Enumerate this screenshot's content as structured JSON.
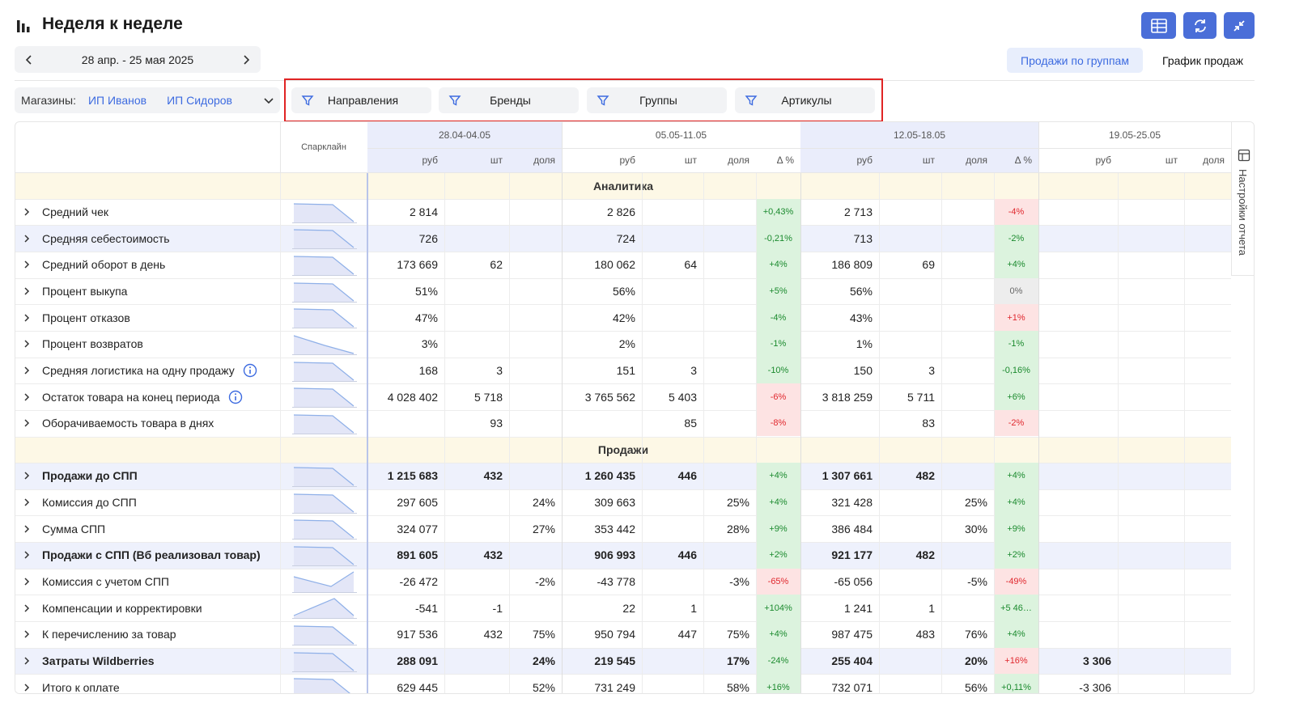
{
  "header": {
    "title": "Неделя к неделе",
    "date_range": "28 апр. - 25 мая 2025"
  },
  "tabs": [
    "Продажи по группам",
    "График продаж"
  ],
  "stores": {
    "label": "Магазины:",
    "items": [
      "ИП Иванов",
      "ИП Сидоров"
    ]
  },
  "filters": [
    "Направления",
    "Бренды",
    "Группы",
    "Артикулы"
  ],
  "side_panel": "Настройки отчета",
  "table": {
    "sparkline_header": "Спарклайн",
    "weeks": [
      {
        "label": "28.04-04.05",
        "columns": [
          "руб",
          "шт",
          "доля"
        ]
      },
      {
        "label": "05.05-11.05",
        "columns": [
          "руб",
          "шт",
          "доля",
          "Δ %"
        ]
      },
      {
        "label": "12.05-18.05",
        "columns": [
          "руб",
          "шт",
          "доля",
          "Δ %"
        ]
      },
      {
        "label": "19.05-25.05",
        "columns": [
          "руб",
          "шт",
          "доля"
        ]
      }
    ],
    "sections": [
      {
        "title": "Аналитика",
        "rows": [
          {
            "name": "Средний чек",
            "cells": [
              "2 814",
              null,
              null,
              "2 826",
              null,
              null,
              "+0,43%",
              "2 713",
              null,
              null,
              "-4%",
              null,
              null,
              null
            ],
            "delta_tones": [
              "green",
              "red"
            ]
          },
          {
            "name": "Средняя себестоимость",
            "highlight": true,
            "cells": [
              "726",
              null,
              null,
              "724",
              null,
              null,
              "-0,21%",
              "713",
              null,
              null,
              "-2%",
              null,
              null,
              null
            ],
            "delta_tones": [
              "green",
              "green"
            ]
          },
          {
            "name": "Средний оборот в день",
            "cells": [
              "173 669",
              "62",
              null,
              "180 062",
              "64",
              null,
              "+4%",
              "186 809",
              "69",
              null,
              "+4%",
              null,
              null,
              null
            ],
            "delta_tones": [
              "green",
              "green"
            ]
          },
          {
            "name": "Процент выкупа",
            "cells": [
              "51%",
              null,
              null,
              "56%",
              null,
              null,
              "+5%",
              "56%",
              null,
              null,
              "0%",
              null,
              null,
              null
            ],
            "delta_tones": [
              "green",
              "gray"
            ]
          },
          {
            "name": "Процент отказов",
            "cells": [
              "47%",
              null,
              null,
              "42%",
              null,
              null,
              "-4%",
              "43%",
              null,
              null,
              "+1%",
              null,
              null,
              null
            ],
            "delta_tones": [
              "green",
              "red"
            ]
          },
          {
            "name": "Процент возвратов",
            "cells": [
              "3%",
              null,
              null,
              "2%",
              null,
              null,
              "-1%",
              "1%",
              null,
              null,
              "-1%",
              null,
              null,
              null
            ],
            "delta_tones": [
              "green",
              "green"
            ]
          },
          {
            "name": "Средняя логистика на одну продажу",
            "info": true,
            "cells": [
              "168",
              "3",
              null,
              "151",
              "3",
              null,
              "-10%",
              "150",
              "3",
              null,
              "-0,16%",
              null,
              null,
              null
            ],
            "delta_tones": [
              "green",
              "green"
            ]
          },
          {
            "name": "Остаток товара на конец периода",
            "info": true,
            "cells": [
              "4 028 402",
              "5 718",
              null,
              "3 765 562",
              "5 403",
              null,
              "-6%",
              "3 818 259",
              "5 711",
              null,
              "+6%",
              null,
              null,
              null
            ],
            "delta_tones": [
              "red",
              "green"
            ]
          },
          {
            "name": "Оборачиваемость товара в днях",
            "cells": [
              null,
              "93",
              null,
              null,
              "85",
              null,
              "-8%",
              null,
              "83",
              null,
              "-2%",
              null,
              null,
              null
            ],
            "delta_tones": [
              "red",
              "red"
            ]
          }
        ]
      },
      {
        "title": "Продажи",
        "rows": [
          {
            "name": "Продажи до СПП",
            "bold": true,
            "cells": [
              "1 215 683",
              "432",
              null,
              "1 260 435",
              "446",
              null,
              "+4%",
              "1 307 661",
              "482",
              null,
              "+4%",
              null,
              null,
              null
            ],
            "delta_tones": [
              "green",
              "green"
            ]
          },
          {
            "name": "Комиссия до СПП",
            "cells": [
              "297 605",
              null,
              "24%",
              "309 663",
              null,
              "25%",
              "+4%",
              "321 428",
              null,
              "25%",
              "+4%",
              null,
              null,
              null
            ],
            "delta_tones": [
              "green",
              "green"
            ]
          },
          {
            "name": "Сумма СПП",
            "cells": [
              "324 077",
              null,
              "27%",
              "353 442",
              null,
              "28%",
              "+9%",
              "386 484",
              null,
              "30%",
              "+9%",
              null,
              null,
              null
            ],
            "delta_tones": [
              "green",
              "green"
            ]
          },
          {
            "name": "Продажи с СПП (Вб реализовал товар)",
            "bold": true,
            "cells": [
              "891 605",
              "432",
              null,
              "906 993",
              "446",
              null,
              "+2%",
              "921 177",
              "482",
              null,
              "+2%",
              null,
              null,
              null
            ],
            "delta_tones": [
              "green",
              "green"
            ]
          },
          {
            "name": "Комиссия с учетом СПП",
            "cells": [
              "-26 472",
              null,
              "-2%",
              "-43 778",
              null,
              "-3%",
              "-65%",
              "-65 056",
              null,
              "-5%",
              "-49%",
              null,
              null,
              null
            ],
            "delta_tones": [
              "red",
              "red"
            ]
          },
          {
            "name": "Компенсации и корректировки",
            "cells": [
              "-541",
              "-1",
              null,
              "22",
              "1",
              null,
              "+104%",
              "1 241",
              "1",
              null,
              "+5 46…",
              null,
              null,
              null
            ],
            "delta_tones": [
              "green",
              "green"
            ]
          },
          {
            "name": "К перечислению за товар",
            "cells": [
              "917 536",
              "432",
              "75%",
              "950 794",
              "447",
              "75%",
              "+4%",
              "987 475",
              "483",
              "76%",
              "+4%",
              null,
              null,
              null
            ],
            "delta_tones": [
              "green",
              "green"
            ]
          },
          {
            "name": "Затраты Wildberries",
            "bold": true,
            "cells": [
              "288 091",
              null,
              "24%",
              "219 545",
              null,
              "17%",
              "-24%",
              "255 404",
              null,
              "20%",
              "+16%",
              "3 306",
              null,
              null
            ],
            "delta_tones": [
              "green",
              "red"
            ]
          },
          {
            "name": "Итого к оплате",
            "cells": [
              "629 445",
              null,
              "52%",
              "731 249",
              null,
              "58%",
              "+16%",
              "732 071",
              null,
              "56%",
              "+0,11%",
              "-3 306",
              null,
              null
            ],
            "delta_tones": [
              "green",
              "green"
            ]
          }
        ]
      }
    ]
  }
}
